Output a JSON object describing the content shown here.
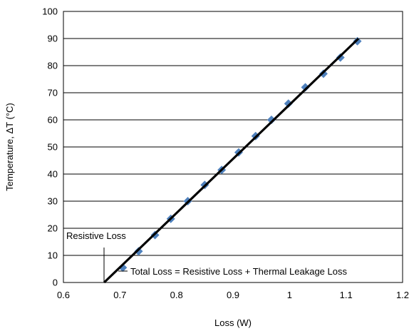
{
  "chart_data": {
    "type": "scatter",
    "xlabel": "Loss (W)",
    "ylabel": "Temperature, ΔT (°C)",
    "xlim": [
      0.6,
      1.2
    ],
    "ylim": [
      0,
      100
    ],
    "x_ticks": [
      "0.6",
      "0.7",
      "0.8",
      "0.9",
      "1",
      "1.1",
      "1.2"
    ],
    "y_ticks": [
      "0",
      "10",
      "20",
      "30",
      "40",
      "50",
      "60",
      "70",
      "80",
      "90",
      "100"
    ],
    "grid": "horizontal",
    "series": [
      {
        "marker": "diamond",
        "color": "#4f81bd",
        "x": [
          0.705,
          0.733,
          0.762,
          0.79,
          0.82,
          0.85,
          0.88,
          0.91,
          0.94,
          0.968,
          0.998,
          1.028,
          1.06,
          1.09,
          1.12
        ],
        "y": [
          5.5,
          11.5,
          17.5,
          23.5,
          30,
          36,
          41.5,
          48,
          54,
          60,
          66,
          72,
          77,
          83,
          89
        ]
      },
      {
        "line": true,
        "color": "#000000",
        "x": [
          0.672,
          1.122
        ],
        "y": [
          0,
          90
        ]
      }
    ],
    "annotations": [
      {
        "text": "Resistive Loss",
        "x": 0.672,
        "y": 10
      },
      {
        "text": "Total Loss = Resistive Loss + Thermal Leakage Loss",
        "x": 0.69,
        "y": 4
      }
    ]
  }
}
